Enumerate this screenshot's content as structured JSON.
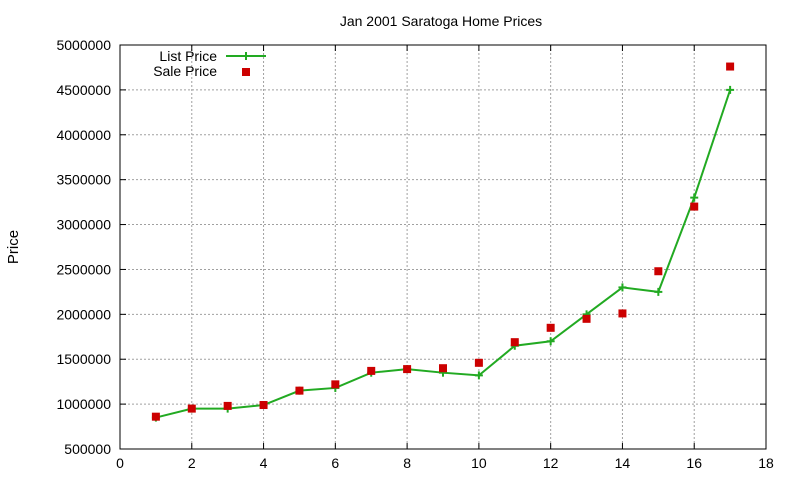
{
  "chart_data": {
    "type": "line",
    "title": "Jan 2001 Saratoga Home Prices",
    "xlabel": "",
    "ylabel": "Price",
    "xlim": [
      0,
      18
    ],
    "ylim": [
      500000,
      5000000
    ],
    "xticks": [
      "0",
      "2",
      "4",
      "6",
      "8",
      "10",
      "12",
      "14",
      "16",
      "18"
    ],
    "yticks": [
      "500000",
      "1000000",
      "1500000",
      "2000000",
      "2500000",
      "3000000",
      "3500000",
      "4000000",
      "4500000",
      "5000000"
    ],
    "grid": true,
    "legend_position": "top-left",
    "series": [
      {
        "name": "List Price",
        "style": "line+cross",
        "color": "#22aa22",
        "x": [
          1,
          2,
          3,
          4,
          5,
          6,
          7,
          8,
          9,
          10,
          11,
          12,
          13,
          14,
          15,
          16,
          17
        ],
        "y": [
          850000,
          950000,
          950000,
          990000,
          1150000,
          1180000,
          1350000,
          1390000,
          1350000,
          1320000,
          1650000,
          1700000,
          2000000,
          2300000,
          2250000,
          3300000,
          4500000
        ]
      },
      {
        "name": "Sale Price",
        "style": "square",
        "color": "#cc0000",
        "x": [
          1,
          2,
          3,
          4,
          5,
          6,
          7,
          8,
          9,
          10,
          11,
          12,
          13,
          14,
          15,
          16,
          17
        ],
        "y": [
          860000,
          950000,
          980000,
          990000,
          1150000,
          1220000,
          1370000,
          1390000,
          1400000,
          1460000,
          1690000,
          1850000,
          1950000,
          2010000,
          2480000,
          3200000,
          4760000
        ]
      }
    ]
  }
}
